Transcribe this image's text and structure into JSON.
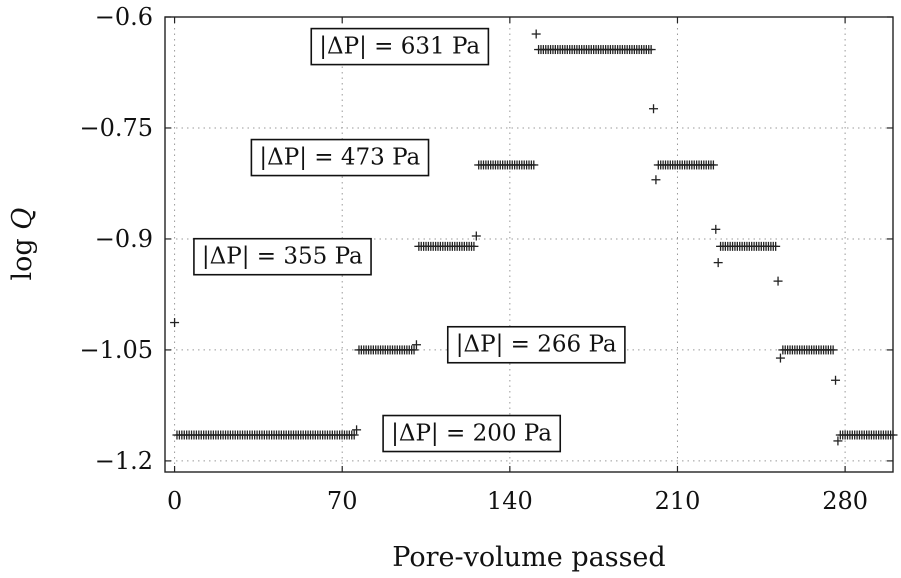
{
  "chart_data": {
    "type": "scatter",
    "title": "",
    "xlabel": "Pore-volume passed",
    "ylabel": "log Q",
    "xlim": [
      -4,
      300
    ],
    "ylim": [
      -1.215,
      -0.6
    ],
    "x_ticks": [
      0,
      70,
      140,
      210,
      280
    ],
    "y_ticks": [
      -0.6,
      -0.75,
      -0.9,
      -1.05,
      -1.2
    ],
    "x_tick_labels": [
      "0",
      "70",
      "140",
      "210",
      "280"
    ],
    "y_tick_labels": [
      "−0.6",
      "−0.75",
      "−0.9",
      "−1.05",
      "−1.2"
    ],
    "grid": true,
    "marker": "+",
    "series": [
      {
        "name": "log Q",
        "points": [
          [
            0,
            -1.013
          ],
          [
            76,
            -1.158
          ],
          [
            101,
            -1.043
          ],
          [
            126,
            -0.896
          ],
          [
            151,
            -0.623
          ],
          [
            200,
            -0.724
          ],
          [
            201,
            -0.82
          ],
          [
            226,
            -0.887
          ],
          [
            227,
            -0.932
          ],
          [
            252,
            -0.957
          ],
          [
            253,
            -1.061
          ],
          [
            276,
            -1.091
          ],
          [
            277,
            -1.173
          ]
        ],
        "plateaus": [
          {
            "x_start": 1,
            "x_end": 75,
            "count": 74,
            "y": -1.165
          },
          {
            "x_start": 77,
            "x_end": 100,
            "count": 24,
            "y": -1.05
          },
          {
            "x_start": 102,
            "x_end": 125,
            "count": 24,
            "y": -0.91
          },
          {
            "x_start": 127,
            "x_end": 150,
            "count": 24,
            "y": -0.8
          },
          {
            "x_start": 152,
            "x_end": 199,
            "count": 48,
            "y": -0.644
          },
          {
            "x_start": 202,
            "x_end": 225,
            "count": 24,
            "y": -0.8
          },
          {
            "x_start": 228,
            "x_end": 251,
            "count": 24,
            "y": -0.91
          },
          {
            "x_start": 254,
            "x_end": 275,
            "count": 22,
            "y": -1.05
          },
          {
            "x_start": 278,
            "x_end": 300,
            "count": 23,
            "y": -1.165
          }
        ]
      }
    ],
    "annotations": [
      {
        "text": "|ΔP| = 631 Pa",
        "x": 94,
        "y": -0.64
      },
      {
        "text": "|ΔP| = 473 Pa",
        "x": 69,
        "y": -0.79
      },
      {
        "text": "|ΔP| = 355 Pa",
        "x": 45,
        "y": -0.924
      },
      {
        "text": "|ΔP| = 266 Pa",
        "x": 151,
        "y": -1.043
      },
      {
        "text": "|ΔP| = 200 Pa",
        "x": 124,
        "y": -1.163
      }
    ]
  }
}
